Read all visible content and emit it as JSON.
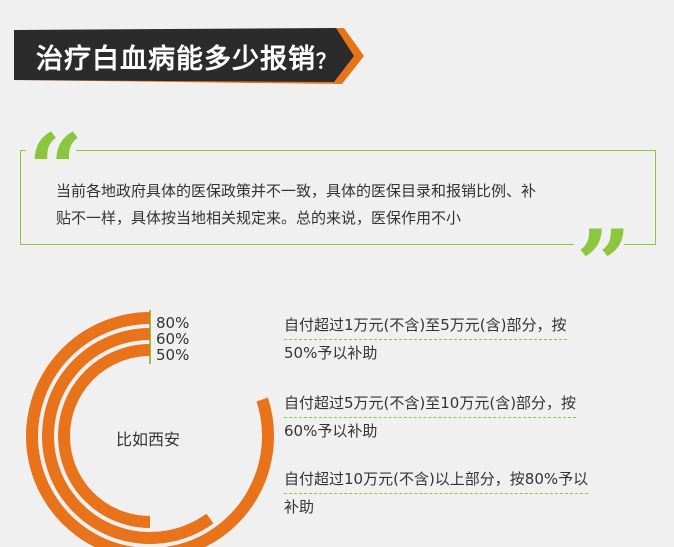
{
  "title": "治疗白血病能多少报销",
  "title_suffix": "？",
  "quote": {
    "line1": "当前各地政府具体的医保政策并不一致，具体的医保目录和报销比例、补",
    "line2": "贴不一样，具体按当地相关规定来。总的来说，医保作用不小"
  },
  "ring": {
    "center_label": "比如西安",
    "labels": [
      "80%",
      "60%",
      "50%"
    ],
    "values": [
      0.8,
      0.6,
      0.5
    ],
    "color": "#e8731a",
    "track_color": "#8cc63f"
  },
  "policies": [
    {
      "line1": "自付超过1万元(不含)至5万元(含)部分，按",
      "line2": "50%予以补助"
    },
    {
      "line1": "自付超过5万元(不含)至10万元(含)部分，按",
      "line2": "60%予以补助"
    },
    {
      "line1": "自付超过10万元(不含)以上部分，按80%予以",
      "line2": "补助"
    }
  ],
  "colors": {
    "banner_dark": "#2b2b2b",
    "banner_accent": "#e8731a",
    "green": "#8cc63f"
  }
}
